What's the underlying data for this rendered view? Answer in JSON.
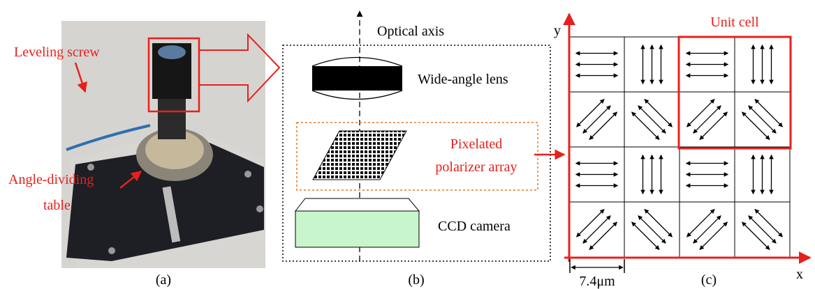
{
  "panel_a": {
    "leveling_label": "Leveling screw",
    "angle_label_line1": "Angle-dividing",
    "angle_label_line2": "table",
    "caption": "(a)"
  },
  "panel_b": {
    "axis_label": "Optical axis",
    "lens_label": "Wide-angle lens",
    "polarizer_line1": "Pixelated",
    "polarizer_line2": "polarizer array",
    "camera_label": "CCD camera",
    "caption": "(b)"
  },
  "panel_c": {
    "y_label": "y",
    "x_label": "x",
    "unit_cell_label": "Unit cell",
    "pitch_label": "7.4μm",
    "caption": "(c)"
  }
}
